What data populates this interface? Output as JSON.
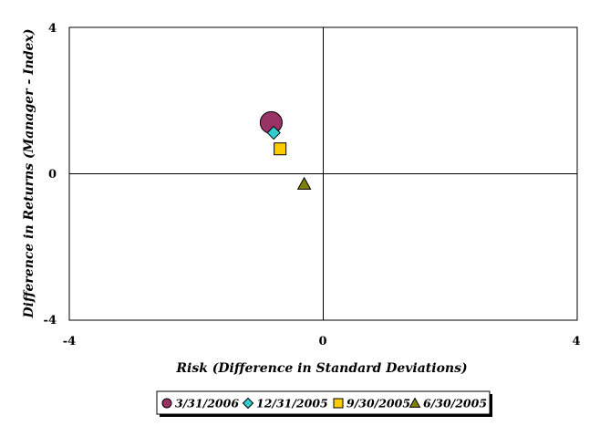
{
  "chart_data": {
    "type": "scatter",
    "title": "",
    "xlabel": "Risk (Difference in Standard Deviations)",
    "ylabel": "Difference in Returns (Manager - Index)",
    "xlim": [
      -4,
      4
    ],
    "ylim": [
      -4,
      4
    ],
    "x_ticks": [
      "-4",
      "0",
      "4"
    ],
    "y_ticks": [
      "4",
      "0",
      "-4"
    ],
    "grid": false,
    "legend_position": "bottom",
    "series": [
      {
        "name": "3/31/2006",
        "marker": "circle",
        "color": "#993366",
        "x": -0.82,
        "y": 1.4
      },
      {
        "name": "12/31/2005",
        "marker": "diamond",
        "color": "#33CCCC",
        "x": -0.78,
        "y": 1.12
      },
      {
        "name": "9/30/2005",
        "marker": "square",
        "color": "#FFCC00",
        "x": -0.68,
        "y": 0.68
      },
      {
        "name": "6/30/2005",
        "marker": "triangle",
        "color": "#808000",
        "x": -0.3,
        "y": -0.28
      }
    ]
  }
}
